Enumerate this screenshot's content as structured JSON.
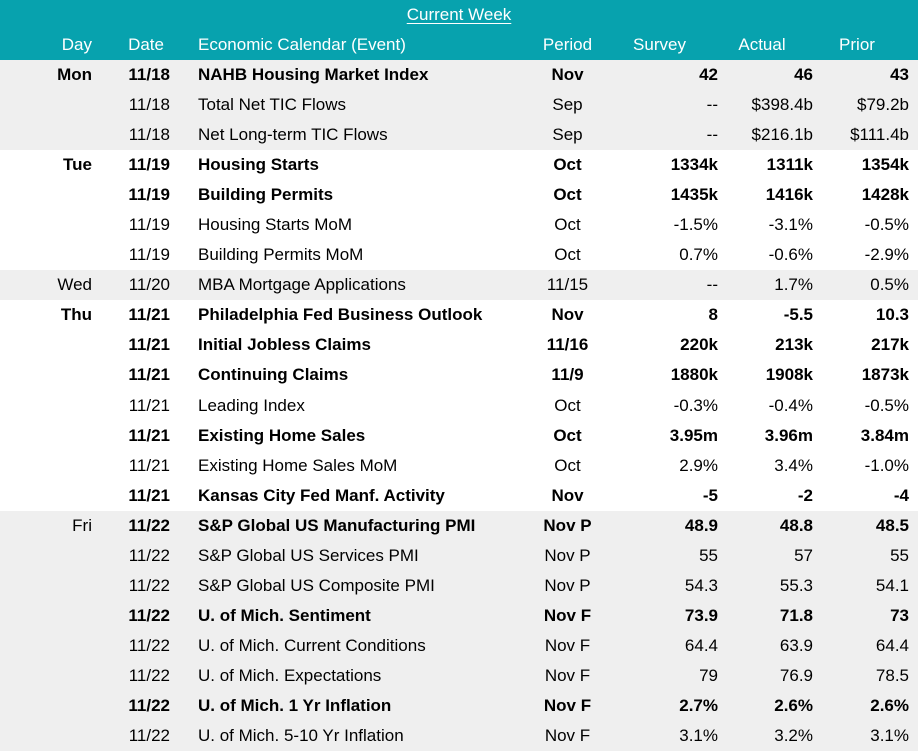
{
  "title": "Current Week",
  "columns": {
    "day": "Day",
    "date": "Date",
    "event": "Economic Calendar (Event)",
    "period": "Period",
    "survey": "Survey",
    "actual": "Actual",
    "prior": "Prior"
  },
  "colors": {
    "header_bg": "#07A2AE",
    "header_text": "#FFFFFF",
    "stripe_bg": "#EFEFEF",
    "row_bg": "#FFFFFF",
    "text_color": "#000000"
  },
  "rows": [
    {
      "day": "Mon",
      "day_bold": true,
      "date": "11/18",
      "event": "NAHB Housing Market Index",
      "period": "Nov",
      "survey": "42",
      "actual": "46",
      "prior": "43",
      "bold": true,
      "shaded": true
    },
    {
      "day": "",
      "day_bold": false,
      "date": "11/18",
      "event": "Total Net TIC Flows",
      "period": "Sep",
      "survey": "--",
      "actual": "$398.4b",
      "prior": "$79.2b",
      "bold": false,
      "shaded": true
    },
    {
      "day": "",
      "day_bold": false,
      "date": "11/18",
      "event": "Net Long-term TIC Flows",
      "period": "Sep",
      "survey": "--",
      "actual": "$216.1b",
      "prior": "$111.4b",
      "bold": false,
      "shaded": true
    },
    {
      "day": "Tue",
      "day_bold": true,
      "date": "11/19",
      "event": "Housing Starts",
      "period": "Oct",
      "survey": "1334k",
      "actual": "1311k",
      "prior": "1354k",
      "bold": true,
      "shaded": false
    },
    {
      "day": "",
      "day_bold": false,
      "date": "11/19",
      "event": "Building Permits",
      "period": "Oct",
      "survey": "1435k",
      "actual": "1416k",
      "prior": "1428k",
      "bold": true,
      "shaded": false
    },
    {
      "day": "",
      "day_bold": false,
      "date": "11/19",
      "event": "Housing Starts MoM",
      "period": "Oct",
      "survey": "-1.5%",
      "actual": "-3.1%",
      "prior": "-0.5%",
      "bold": false,
      "shaded": false
    },
    {
      "day": "",
      "day_bold": false,
      "date": "11/19",
      "event": "Building Permits MoM",
      "period": "Oct",
      "survey": "0.7%",
      "actual": "-0.6%",
      "prior": "-2.9%",
      "bold": false,
      "shaded": false
    },
    {
      "day": "Wed",
      "day_bold": false,
      "date": "11/20",
      "event": "MBA Mortgage Applications",
      "period": "11/15",
      "survey": "--",
      "actual": "1.7%",
      "prior": "0.5%",
      "bold": false,
      "shaded": true
    },
    {
      "day": "Thu",
      "day_bold": true,
      "date": "11/21",
      "event": "Philadelphia Fed Business Outlook",
      "period": "Nov",
      "survey": "8",
      "actual": "-5.5",
      "prior": "10.3",
      "bold": true,
      "shaded": false
    },
    {
      "day": "",
      "day_bold": false,
      "date": "11/21",
      "event": "Initial Jobless Claims",
      "period": "11/16",
      "survey": "220k",
      "actual": "213k",
      "prior": "217k",
      "bold": true,
      "shaded": false
    },
    {
      "day": "",
      "day_bold": false,
      "date": "11/21",
      "event": "Continuing Claims",
      "period": "11/9",
      "survey": "1880k",
      "actual": "1908k",
      "prior": "1873k",
      "bold": true,
      "shaded": false
    },
    {
      "day": "",
      "day_bold": false,
      "date": "11/21",
      "event": "Leading Index",
      "period": "Oct",
      "survey": "-0.3%",
      "actual": "-0.4%",
      "prior": "-0.5%",
      "bold": false,
      "shaded": false
    },
    {
      "day": "",
      "day_bold": false,
      "date": "11/21",
      "event": "Existing Home Sales",
      "period": "Oct",
      "survey": "3.95m",
      "actual": "3.96m",
      "prior": "3.84m",
      "bold": true,
      "shaded": false
    },
    {
      "day": "",
      "day_bold": false,
      "date": "11/21",
      "event": "Existing Home Sales MoM",
      "period": "Oct",
      "survey": "2.9%",
      "actual": "3.4%",
      "prior": "-1.0%",
      "bold": false,
      "shaded": false
    },
    {
      "day": "",
      "day_bold": false,
      "date": "11/21",
      "event": "Kansas City Fed Manf. Activity",
      "period": "Nov",
      "survey": "-5",
      "actual": "-2",
      "prior": "-4",
      "bold": true,
      "shaded": false
    },
    {
      "day": "Fri",
      "day_bold": false,
      "date": "11/22",
      "event": "S&P Global US Manufacturing PMI",
      "period": "Nov P",
      "survey": "48.9",
      "actual": "48.8",
      "prior": "48.5",
      "bold": true,
      "shaded": true
    },
    {
      "day": "",
      "day_bold": false,
      "date": "11/22",
      "event": "S&P Global US Services PMI",
      "period": "Nov P",
      "survey": "55",
      "actual": "57",
      "prior": "55",
      "bold": false,
      "shaded": true
    },
    {
      "day": "",
      "day_bold": false,
      "date": "11/22",
      "event": "S&P Global US Composite PMI",
      "period": "Nov P",
      "survey": "54.3",
      "actual": "55.3",
      "prior": "54.1",
      "bold": false,
      "shaded": true
    },
    {
      "day": "",
      "day_bold": false,
      "date": "11/22",
      "event": "U. of Mich. Sentiment",
      "period": "Nov F",
      "survey": "73.9",
      "actual": "71.8",
      "prior": "73",
      "bold": true,
      "shaded": true
    },
    {
      "day": "",
      "day_bold": false,
      "date": "11/22",
      "event": "U. of Mich. Current Conditions",
      "period": "Nov F",
      "survey": "64.4",
      "actual": "63.9",
      "prior": "64.4",
      "bold": false,
      "shaded": true
    },
    {
      "day": "",
      "day_bold": false,
      "date": "11/22",
      "event": "U. of Mich. Expectations",
      "period": "Nov F",
      "survey": "79",
      "actual": "76.9",
      "prior": "78.5",
      "bold": false,
      "shaded": true
    },
    {
      "day": "",
      "day_bold": false,
      "date": "11/22",
      "event": "U. of Mich. 1 Yr Inflation",
      "period": "Nov F",
      "survey": "2.7%",
      "actual": "2.6%",
      "prior": "2.6%",
      "bold": true,
      "shaded": true
    },
    {
      "day": "",
      "day_bold": false,
      "date": "11/22",
      "event": "U. of Mich. 5-10 Yr Inflation",
      "period": "Nov F",
      "survey": "3.1%",
      "actual": "3.2%",
      "prior": "3.1%",
      "bold": false,
      "shaded": true
    }
  ]
}
